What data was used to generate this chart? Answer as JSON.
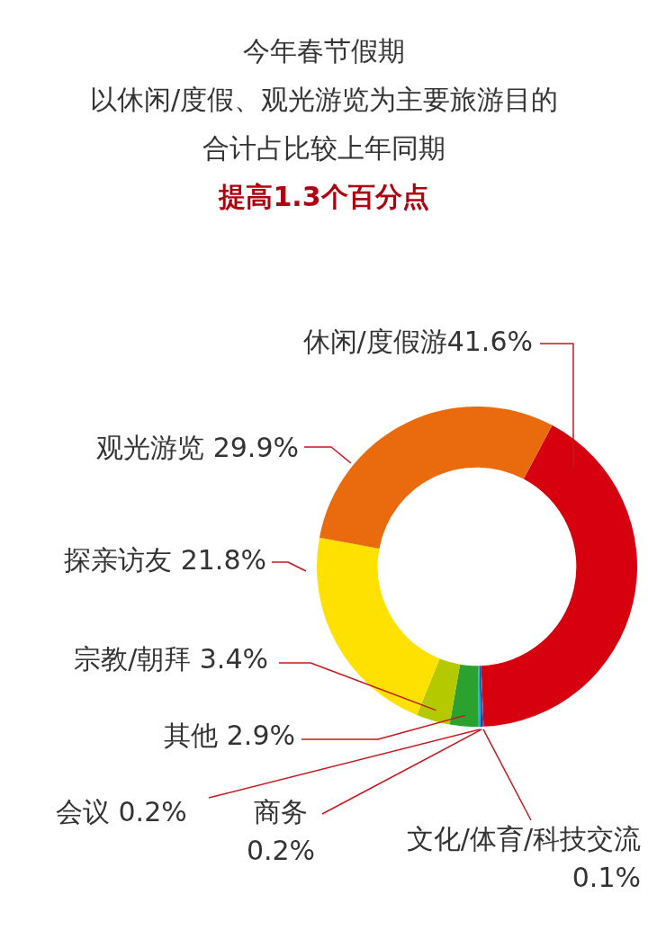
{
  "chart_data": {
    "type": "donut",
    "title": "今年春节假期",
    "subtitle": "以休闲/度假、观光游览为主要旅游目的",
    "annotations": [
      "合计占比较上年同期",
      "提高1.3个百分点"
    ],
    "categories": [
      "休闲/度假游",
      "文化/体育/科技交流",
      "商务",
      "会议",
      "其他",
      "宗教/朝拜",
      "探亲访友",
      "观光游览"
    ],
    "values": [
      41.6,
      0.1,
      0.2,
      0.2,
      2.9,
      3.4,
      21.8,
      29.9
    ],
    "value_labels": [
      "41.6%",
      "0.1%",
      "0.2%",
      "0.2%",
      "2.9%",
      "3.4%",
      "21.8%",
      "29.9%"
    ],
    "colors": [
      "#d7000f",
      "#6a3b8c",
      "#2b3f8e",
      "#1ab0e6",
      "#2ba22f",
      "#b5c900",
      "#ffe100",
      "#ea6a0e"
    ],
    "legend": false
  }
}
